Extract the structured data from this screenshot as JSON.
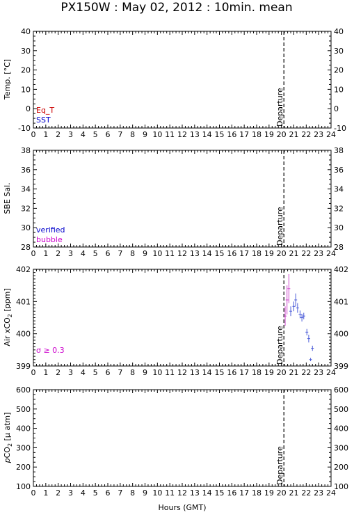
{
  "title": "PX150W : May 02, 2012 : 10min. mean",
  "xlabel": "Hours (GMT)",
  "x_ticks": [
    "0",
    "1",
    "2",
    "3",
    "4",
    "5",
    "6",
    "7",
    "8",
    "9",
    "10",
    "11",
    "12",
    "13",
    "14",
    "15",
    "16",
    "17",
    "18",
    "19",
    "20",
    "21",
    "22",
    "23",
    "24"
  ],
  "departure_label": "Departure",
  "departure_hour": 20.2,
  "colors": {
    "eq_t": "#cc0000",
    "sst": "#0000cc",
    "verified": "#0000cc",
    "bubble": "#cc00cc",
    "sigma": "#cc00cc",
    "air_points": "#4a5bd8",
    "air_points_sigma": "#cc44cc"
  },
  "chart_data": [
    {
      "type": "line",
      "id": "temp",
      "ylabel": "Temp. [°C]",
      "ylim": [
        -10,
        40
      ],
      "y_ticks": [
        "40",
        "30",
        "20",
        "10",
        "0",
        "-10"
      ],
      "y_tick_values": [
        40,
        30,
        20,
        10,
        0,
        -10
      ],
      "legend": [
        {
          "name": "Eq_T",
          "color_key": "eq_t"
        },
        {
          "name": "SST",
          "color_key": "sst"
        }
      ],
      "series": []
    },
    {
      "type": "line",
      "id": "sal",
      "ylabel": "SBE Sal.",
      "ylim": [
        28,
        38
      ],
      "y_ticks": [
        "38",
        "36",
        "34",
        "32",
        "30",
        "28"
      ],
      "y_tick_values": [
        38,
        36,
        34,
        32,
        30,
        28
      ],
      "legend": [
        {
          "name": "verified",
          "color_key": "verified"
        },
        {
          "name": "bubble",
          "color_key": "bubble"
        }
      ],
      "series": []
    },
    {
      "type": "scatter",
      "id": "air",
      "ylabel_main": "Air xCO",
      "ylabel_sub": "2",
      "ylabel_unit": " [ppm]",
      "ylim": [
        399,
        402
      ],
      "y_ticks": [
        "402",
        "401",
        "400",
        "399"
      ],
      "y_tick_values": [
        402,
        401,
        400,
        399
      ],
      "legend": [
        {
          "name": "σ ≥ 0.3",
          "color_key": "sigma"
        }
      ],
      "series": [
        {
          "name": "σ ≥ 0.3",
          "color_key": "air_points_sigma",
          "points": [
            {
              "x": 20.3,
              "y": 400.55,
              "err": 0.3
            },
            {
              "x": 20.45,
              "y": 401.05,
              "err": 0.45
            },
            {
              "x": 20.6,
              "y": 401.4,
              "err": 0.45
            }
          ]
        },
        {
          "name": "",
          "color_key": "air_points",
          "points": [
            {
              "x": 20.75,
              "y": 400.7,
              "err": 0.15
            },
            {
              "x": 21.0,
              "y": 400.85,
              "err": 0.15
            },
            {
              "x": 21.15,
              "y": 401.05,
              "err": 0.2
            },
            {
              "x": 21.3,
              "y": 400.8,
              "err": 0.15
            },
            {
              "x": 21.5,
              "y": 400.6,
              "err": 0.12
            },
            {
              "x": 21.65,
              "y": 400.5,
              "err": 0.12
            },
            {
              "x": 21.8,
              "y": 400.55,
              "err": 0.1
            },
            {
              "x": 22.05,
              "y": 400.05,
              "err": 0.1
            },
            {
              "x": 22.2,
              "y": 399.85,
              "err": 0.12
            },
            {
              "x": 22.35,
              "y": 399.2,
              "err": 0.05
            },
            {
              "x": 22.5,
              "y": 399.55,
              "err": 0.08
            }
          ]
        }
      ]
    },
    {
      "type": "line",
      "id": "pco2",
      "ylabel_pre": "p",
      "ylabel_main": "CO",
      "ylabel_sub": "2",
      "ylabel_unit": " [µ atm]",
      "ylim": [
        100,
        600
      ],
      "y_ticks": [
        "600",
        "500",
        "400",
        "300",
        "200",
        "100"
      ],
      "y_tick_values": [
        600,
        500,
        400,
        300,
        200,
        100
      ],
      "legend": [],
      "series": []
    }
  ]
}
